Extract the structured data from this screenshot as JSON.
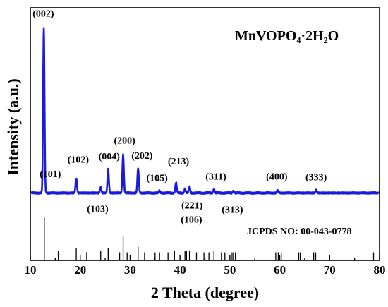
{
  "chart_data": {
    "type": "line",
    "title": "MnVOPO₄·2H₂O",
    "xlabel": "2 Theta (degree)",
    "ylabel": "Intensity (a.u.)",
    "xlim": [
      10,
      80
    ],
    "ylim": [
      0,
      100
    ],
    "x_ticks": [
      10,
      20,
      30,
      40,
      50,
      60,
      70,
      80
    ],
    "y_ticks_shown": false,
    "colors": {
      "pattern": "#1a1adc",
      "reference": "#000000",
      "axes": "#000000"
    },
    "reference_label": "JCPDS NO: 00-043-0778",
    "baseline": 26.7,
    "pattern_peaks": [
      {
        "x": 12.7,
        "y": 92.0,
        "label": "(002)"
      },
      {
        "x": 19.2,
        "y": 32.5,
        "label": "(102)"
      },
      {
        "x": 24.1,
        "y": 29.0,
        "label": ""
      },
      {
        "x": 25.6,
        "y": 36.0,
        "label": "(004)"
      },
      {
        "x": 28.6,
        "y": 41.8,
        "label": "(200)"
      },
      {
        "x": 31.6,
        "y": 36.5,
        "label": "(202)"
      },
      {
        "x": 35.9,
        "y": 27.6,
        "label": "(105)"
      },
      {
        "x": 39.2,
        "y": 30.8,
        "label": "(213)"
      },
      {
        "x": 41.0,
        "y": 28.4,
        "label": ""
      },
      {
        "x": 41.9,
        "y": 29.2,
        "label": ""
      },
      {
        "x": 46.8,
        "y": 28.2,
        "label": "(311)"
      },
      {
        "x": 50.7,
        "y": 27.5,
        "label": ""
      },
      {
        "x": 59.6,
        "y": 27.9,
        "label": "(400)"
      },
      {
        "x": 67.3,
        "y": 27.8,
        "label": "(333)"
      }
    ],
    "peak_annotations": [
      {
        "label": "(002)",
        "x": 12.6,
        "y": 96.5
      },
      {
        "label": "(101)",
        "x": 14.0,
        "y": 33.0
      },
      {
        "label": "(102)",
        "x": 19.6,
        "y": 38.7
      },
      {
        "label": "(004)",
        "x": 25.8,
        "y": 39.9
      },
      {
        "label": "(200)",
        "x": 28.9,
        "y": 46.2
      },
      {
        "label": "(202)",
        "x": 32.4,
        "y": 40.2
      },
      {
        "label": "(105)",
        "x": 35.4,
        "y": 31.4
      },
      {
        "label": "(213)",
        "x": 39.7,
        "y": 38.0
      },
      {
        "label": "(311)",
        "x": 47.2,
        "y": 32.0
      },
      {
        "label": "(400)",
        "x": 59.4,
        "y": 32.0
      },
      {
        "label": "(333)",
        "x": 67.3,
        "y": 31.7
      },
      {
        "label": "(103)",
        "x": 23.5,
        "y": 19.2
      },
      {
        "label": "(221)",
        "x": 42.4,
        "y": 20.5
      },
      {
        "label": "(106)",
        "x": 42.3,
        "y": 15.0
      },
      {
        "label": "(313)",
        "x": 50.5,
        "y": 18.8
      }
    ],
    "reference_lines": [
      {
        "x": 12.8,
        "h": 17.0
      },
      {
        "x": 15.6,
        "h": 3.8
      },
      {
        "x": 19.2,
        "h": 5.0
      },
      {
        "x": 21.3,
        "h": 3.3
      },
      {
        "x": 24.1,
        "h": 3.8
      },
      {
        "x": 25.6,
        "h": 4.8
      },
      {
        "x": 27.9,
        "h": 3.2
      },
      {
        "x": 28.6,
        "h": 9.8
      },
      {
        "x": 29.4,
        "h": 3.2
      },
      {
        "x": 31.6,
        "h": 5.3
      },
      {
        "x": 32.9,
        "h": 3.2
      },
      {
        "x": 35.0,
        "h": 3.2
      },
      {
        "x": 35.9,
        "h": 3.2
      },
      {
        "x": 37.6,
        "h": 3.2
      },
      {
        "x": 38.9,
        "h": 3.8
      },
      {
        "x": 41.0,
        "h": 3.8
      },
      {
        "x": 41.3,
        "h": 3.8
      },
      {
        "x": 41.9,
        "h": 3.8
      },
      {
        "x": 43.3,
        "h": 3.2
      },
      {
        "x": 44.8,
        "h": 3.2
      },
      {
        "x": 45.8,
        "h": 3.2
      },
      {
        "x": 46.8,
        "h": 3.8
      },
      {
        "x": 48.3,
        "h": 3.2
      },
      {
        "x": 49.0,
        "h": 3.2
      },
      {
        "x": 50.3,
        "h": 3.2
      },
      {
        "x": 50.6,
        "h": 3.2
      },
      {
        "x": 51.1,
        "h": 3.2
      },
      {
        "x": 59.2,
        "h": 3.2
      },
      {
        "x": 59.7,
        "h": 3.2
      },
      {
        "x": 60.3,
        "h": 3.2
      },
      {
        "x": 63.8,
        "h": 3.2
      },
      {
        "x": 64.1,
        "h": 3.2
      },
      {
        "x": 66.8,
        "h": 3.2
      },
      {
        "x": 67.2,
        "h": 3.2
      },
      {
        "x": 78.8,
        "h": 3.2
      }
    ]
  }
}
